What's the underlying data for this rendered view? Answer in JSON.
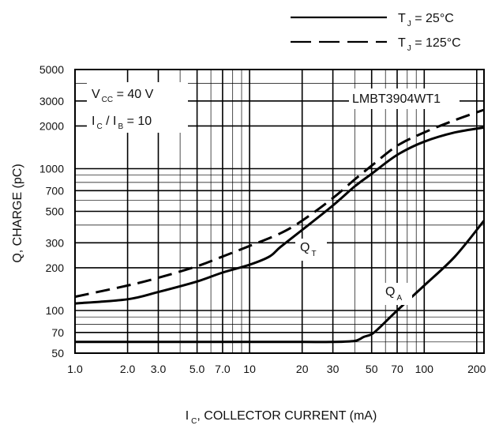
{
  "chart_data": {
    "type": "line",
    "xscale": "log",
    "yscale": "log",
    "xlim": [
      1,
      220
    ],
    "ylim": [
      50,
      5000
    ],
    "x_ticks": [
      1.0,
      2.0,
      3.0,
      5.0,
      7.0,
      10,
      20,
      30,
      50,
      70,
      100,
      200
    ],
    "x_tick_labels": [
      "1.0",
      "2.0",
      "3.0",
      "5.0",
      "7.0",
      "10",
      "20",
      "30",
      "50",
      "70",
      "100",
      "200"
    ],
    "y_ticks": [
      50,
      70,
      100,
      200,
      300,
      500,
      700,
      1000,
      2000,
      3000,
      5000
    ],
    "y_tick_labels": [
      "50",
      "70",
      "100",
      "200",
      "300",
      "500",
      "700",
      "1000",
      "2000",
      "3000",
      "5000"
    ],
    "ylabel": "Q, CHARGE (pC)",
    "xlabel": {
      "pre": "I",
      "sub": "C",
      "post": ", COLLECTOR CURRENT (mA)"
    },
    "grid": true,
    "legend_position": "top-right",
    "legend": [
      {
        "style": "solid",
        "pre": "T",
        "sub": "J",
        "post": " = 25°C"
      },
      {
        "style": "dashed",
        "pre": "T",
        "sub": "J",
        "post": " = 125°C"
      }
    ],
    "annotations": {
      "vcc": {
        "pre": "V",
        "sub": "CC",
        "post": " = 40 V"
      },
      "ratio": {
        "a": "I",
        "a_sub": "C",
        "mid": " / I",
        "b_sub": "B",
        "post": " = 10"
      },
      "part": "LMBT3904WT1",
      "qt": {
        "pre": "Q",
        "sub": "T"
      },
      "qa": {
        "pre": "Q",
        "sub": "A"
      }
    },
    "series": [
      {
        "label": "Q_T, T_J = 125°C",
        "style": "dashed",
        "x": [
          1,
          2,
          3,
          5,
          7,
          10,
          15,
          20,
          30,
          40,
          50,
          70,
          100,
          150,
          220
        ],
        "y": [
          125,
          150,
          170,
          205,
          240,
          285,
          350,
          430,
          620,
          840,
          1050,
          1450,
          1800,
          2200,
          2600
        ]
      },
      {
        "label": "Q_T, T_J = 25°C",
        "style": "solid",
        "x": [
          1,
          2,
          3,
          5,
          7,
          10,
          13,
          15,
          20,
          30,
          40,
          50,
          70,
          100,
          150,
          220
        ],
        "y": [
          112,
          120,
          135,
          160,
          185,
          210,
          240,
          280,
          370,
          550,
          750,
          920,
          1250,
          1550,
          1800,
          1950
        ]
      },
      {
        "label": "Q_A, T_J = 25°C",
        "style": "solid",
        "x": [
          1,
          10,
          20,
          30,
          40,
          45,
          50,
          55,
          70,
          100,
          150,
          220
        ],
        "y": [
          60,
          60,
          60,
          60,
          61,
          65,
          68,
          75,
          100,
          150,
          240,
          430
        ]
      }
    ]
  }
}
